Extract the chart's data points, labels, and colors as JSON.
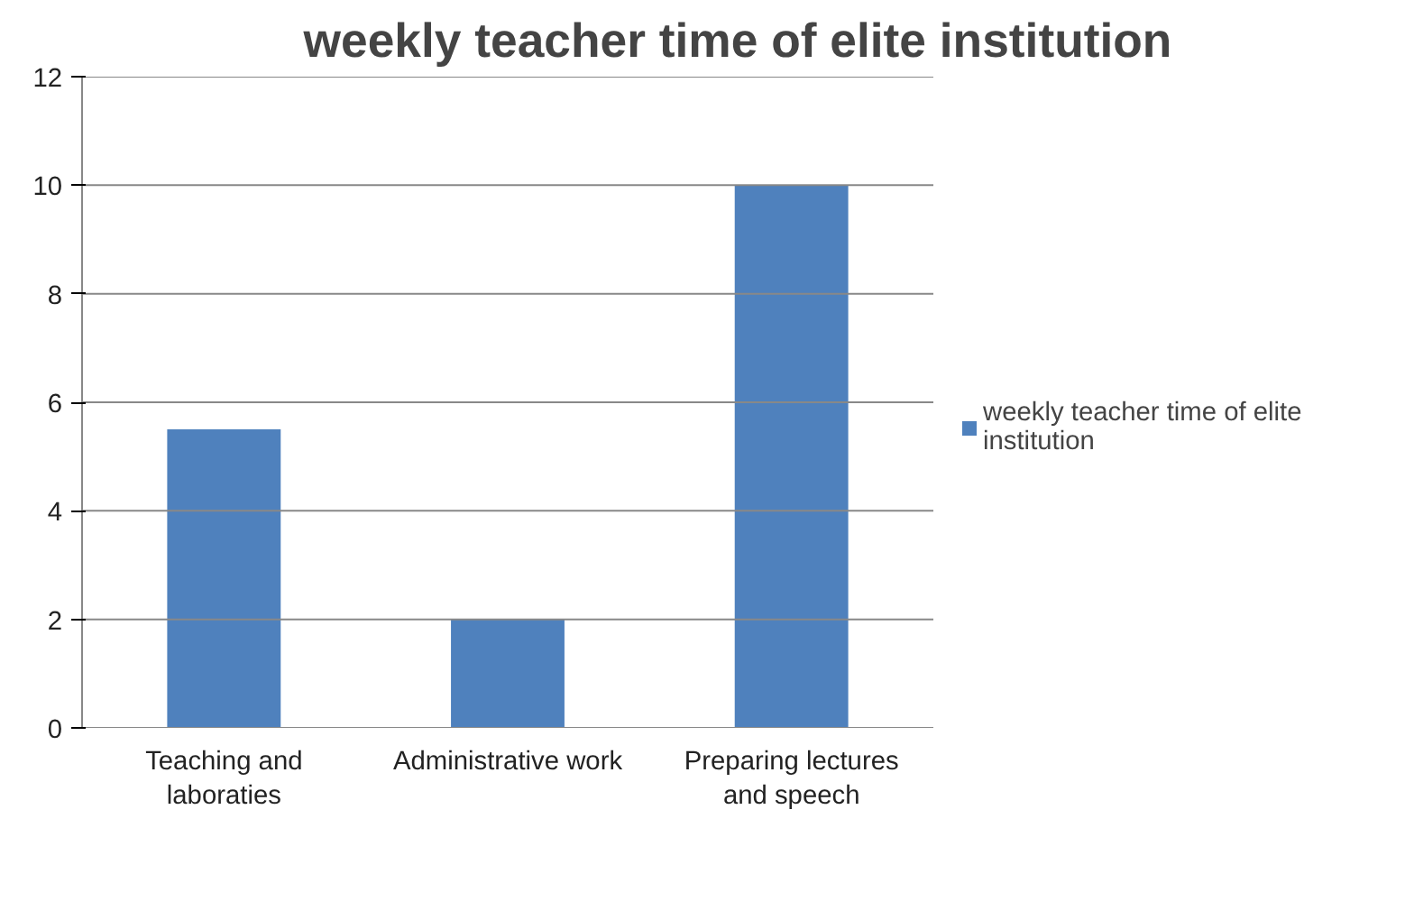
{
  "chart_data": {
    "type": "bar",
    "title": "weekly teacher time of elite institution",
    "categories": [
      "Teaching and laboraties",
      "Administrative work",
      "Preparing lectures and speech"
    ],
    "series": [
      {
        "name": "weekly teacher time of elite institution",
        "color": "#4f81bd",
        "values": [
          5.5,
          2,
          10
        ]
      }
    ],
    "ylim": [
      0,
      12
    ],
    "yticks": [
      0,
      2,
      4,
      6,
      8,
      10,
      12
    ],
    "grid": "y",
    "legend": "right"
  }
}
